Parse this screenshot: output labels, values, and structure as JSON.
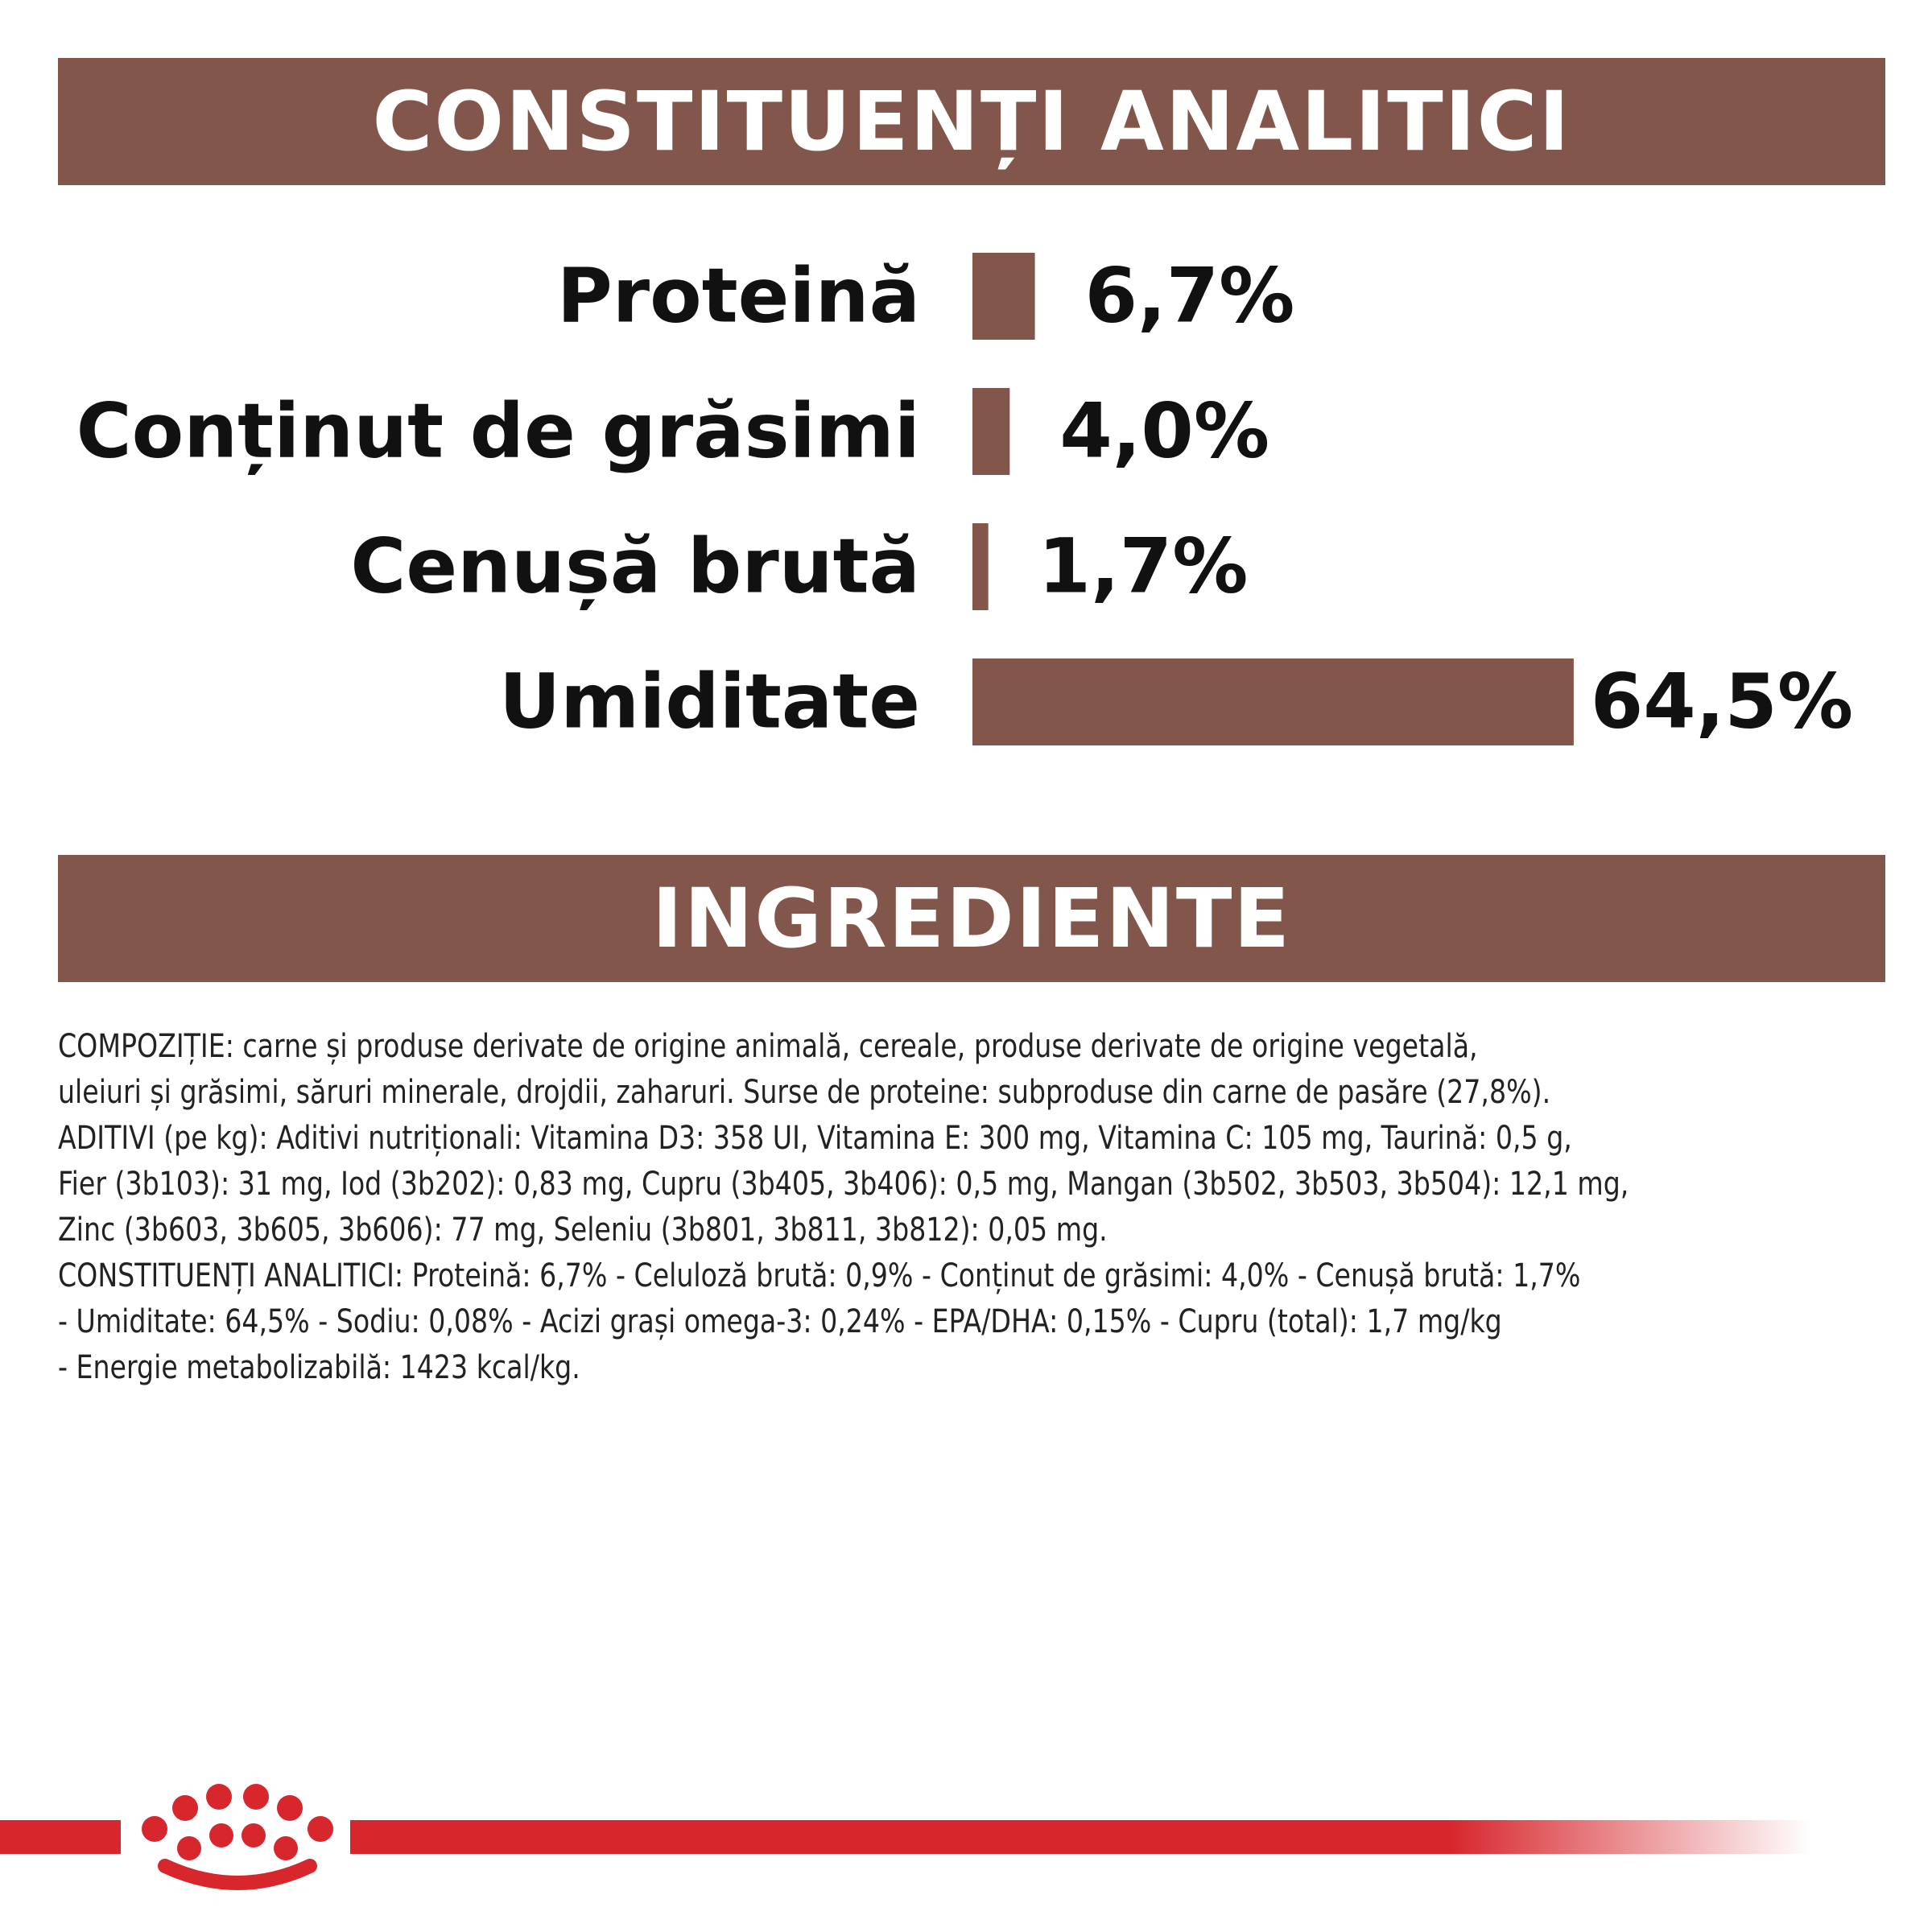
{
  "section_analytic": {
    "title": "CONSTITUENȚI ANALITICI"
  },
  "section_ingredients": {
    "title": "INGREDIENTE"
  },
  "chart_data": {
    "type": "bar",
    "orientation": "horizontal",
    "categories": [
      "Proteină",
      "Conținut de grăsimi",
      "Cenușă brută",
      "Umiditate"
    ],
    "values": [
      6.7,
      4.0,
      1.7,
      64.5
    ],
    "value_labels": [
      "6,7%",
      "4,0%",
      "1,7%",
      "64,5%"
    ],
    "unit": "%",
    "grid": false,
    "legend": "none",
    "bar_color": "#82564a"
  },
  "composition_lines": [
    "COMPOZIȚIE: carne și produse derivate de origine animală, cereale, produse derivate de origine vegetală,",
    "uleiuri și grăsimi, săruri minerale, drojdii, zaharuri. Surse de proteine: subproduse din carne de pasăre (27,8%).",
    "ADITIVI (pe kg): Aditivi nutriționali: Vitamina D3: 358 UI, Vitamina E: 300 mg, Vitamina C: 105 mg, Taurină: 0,5 g,",
    "Fier (3b103): 31 mg, Iod (3b202): 0,83 mg, Cupru (3b405, 3b406): 0,5 mg, Mangan (3b502, 3b503, 3b504): 12,1 mg,",
    "Zinc (3b603, 3b605, 3b606): 77 mg, Seleniu (3b801, 3b811, 3b812): 0,05 mg.",
    "CONSTITUENȚI ANALITICI: Proteină: 6,7% - Celuloză brută: 0,9% - Conținut de grăsimi: 4,0% - Cenușă brută: 1,7%",
    "- Umiditate: 64,5% - Sodiu: 0,08% - Acizi grași omega-3: 0,24% - EPA/DHA: 0,15% - Cupru (total): 1,7 mg/kg",
    "- Energie metabolizabilă: 1423 kcal/kg."
  ],
  "colors": {
    "band": "#82564a",
    "text": "#111111",
    "brand_red": "#d7262c"
  },
  "footer": {
    "logo_icon": "royal-canin-crown-icon"
  }
}
